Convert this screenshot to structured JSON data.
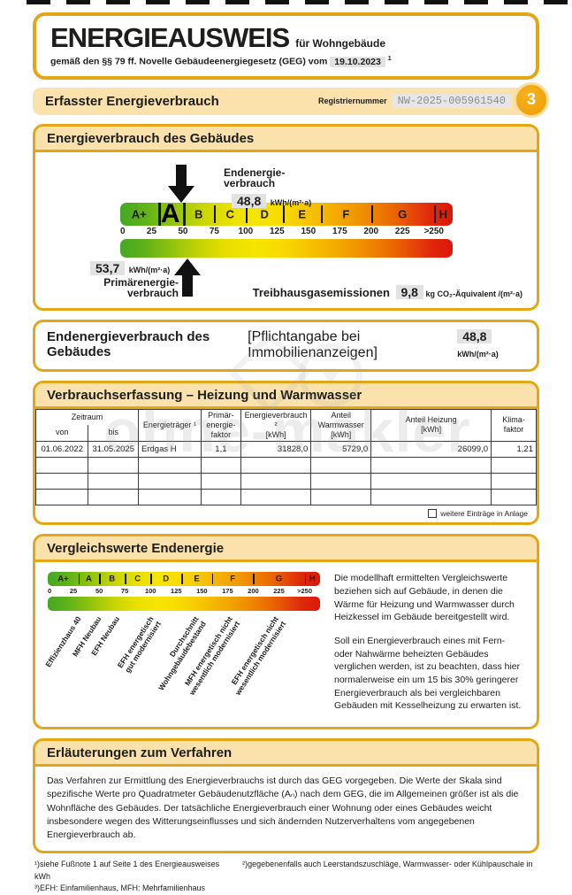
{
  "header": {
    "title": "ENERGIEAUSWEIS",
    "title_suffix": "für Wohngebäude",
    "law_prefix": "gemäß den §§ 79 ff. Novelle Gebäudeenergiegesetz (GEG) vom",
    "law_date": "19.10.2023",
    "law_footnote": "1"
  },
  "registration": {
    "section_title": "Erfasster Energieverbrauch",
    "label": "Registriernummer",
    "number": "NW-2025-005961540",
    "page_badge": "3"
  },
  "consumption_section": {
    "title": "Energieverbrauch des Gebäudes",
    "end_energy_label": "Endenergie-\nverbrauch",
    "end_energy_value": "48,8",
    "end_energy_unit": "kWh/(m²·a)",
    "primary_value": "53,7",
    "primary_unit": "kWh/(m²·a)",
    "primary_label": "Primärenergie-\nverbrauch",
    "ghg_label": "Treibhausgasemissionen",
    "ghg_value": "9,8",
    "ghg_unit": "kg CO₂-Äquivalent /(m²·a)"
  },
  "scale": {
    "max": 265,
    "end_energy": 48.8,
    "primary_energy": 53.7,
    "classes": [
      {
        "letter": "A+",
        "from": 0,
        "to": 30
      },
      {
        "letter": "A",
        "from": 30,
        "to": 50,
        "current": true
      },
      {
        "letter": "B",
        "from": 50,
        "to": 75
      },
      {
        "letter": "C",
        "from": 75,
        "to": 100
      },
      {
        "letter": "D",
        "from": 100,
        "to": 130
      },
      {
        "letter": "E",
        "from": 130,
        "to": 160
      },
      {
        "letter": "F",
        "from": 160,
        "to": 200
      },
      {
        "letter": "G",
        "from": 200,
        "to": 250
      },
      {
        "letter": "H",
        "from": 250,
        "to": 265
      }
    ],
    "ticks": [
      {
        "label": "0",
        "value": 0
      },
      {
        "label": "25",
        "value": 25
      },
      {
        "label": "50",
        "value": 50
      },
      {
        "label": "75",
        "value": 75
      },
      {
        "label": "100",
        "value": 100
      },
      {
        "label": "125",
        "value": 125
      },
      {
        "label": "150",
        "value": 150
      },
      {
        "label": "175",
        "value": 175
      },
      {
        "label": "200",
        "value": 200
      },
      {
        "label": "225",
        "value": 225
      },
      {
        "label": ">250",
        "value": 250
      }
    ]
  },
  "mandatory_bar": {
    "title": "Endenergieverbrauch des Gebäudes",
    "bracket": "[Pflichtangabe bei Immobilienanzeigen]",
    "value": "48,8",
    "unit": "kWh/(m²·a)"
  },
  "table": {
    "title": "Verbrauchserfassung – Heizung und Warmwasser",
    "header": {
      "zeitraum": "Zeitraum",
      "von": "von",
      "bis": "bis",
      "energietraeger": "Energieträger ¹",
      "primaerfaktor": "Primär-\nenergie-\nfaktor",
      "verbrauch": "Energieverbrauch ²\n[kWh]",
      "warmwasser": "Anteil\nWarmwasser\n[kWh]",
      "heizung": "Anteil Heizung\n[kWh]",
      "klimafaktor": "Klima-\nfaktor"
    },
    "rows": [
      [
        "01.06.2022",
        "31.05.2025",
        "Erdgas H",
        "1,1",
        "31828,0",
        "5729,0",
        "26099,0",
        "1,21"
      ],
      [
        "",
        "",
        "",
        "",
        "",
        "",
        "",
        ""
      ],
      [
        "",
        "",
        "",
        "",
        "",
        "",
        "",
        ""
      ],
      [
        "",
        "",
        "",
        "",
        "",
        "",
        "",
        ""
      ]
    ],
    "checkbox_label": "weitere Einträge in Anlage",
    "checkbox_checked": false
  },
  "comparison": {
    "title": "Vergleichswerte Endenergie",
    "labels": [
      {
        "text": "Effizienzhaus 40",
        "value": 28
      },
      {
        "text": "MFH Neubau",
        "value": 47
      },
      {
        "text": "EFH Neubau",
        "value": 65
      },
      {
        "text": "EFH energetisch\ngut modernisiert",
        "value": 98
      },
      {
        "text": "Durchschnitt\nWohngebäudebestand",
        "value": 142
      },
      {
        "text": "MFH energetisch nicht\nwesentlich modernisiert",
        "value": 175
      },
      {
        "text": "EFH energetisch nicht\nwesentlich modernisiert",
        "value": 220
      }
    ],
    "paragraphs": [
      "Die modellhaft ermittelten Vergleichswerte beziehen sich auf Gebäude, in denen die Wärme für Heizung und Warmwasser durch Heizkessel im Gebäude bereitgestellt wird.",
      "Soll ein Energieverbrauch eines mit Fern- oder Nahwärme beheizten Gebäudes verglichen werden, ist zu beachten, dass hier normalerweise ein um 15 bis 30% geringerer Energieverbrauch als bei vergleichbaren Gebäuden mit Kesselheizung zu erwarten ist."
    ]
  },
  "explanation": {
    "title": "Erläuterungen zum Verfahren",
    "text": "Das Verfahren zur Ermittlung des Energieverbrauchs ist durch das GEG vorgegeben. Die Werte der Skala sind spezifische Werte pro Quadratmeter Gebäudenutzfläche (Aₙ) nach dem GEG, die im Allgemeinen größer ist als die Wohnfläche des Gebäudes. Der tatsächliche Energieverbrauch einer Wohnung oder eines Gebäudes weicht insbesondere wegen des Witterungseinflusses und sich ändernden Nutzerverhaltens vom angegebenen Energieverbrauch ab."
  },
  "footnotes": {
    "line1a": "¹)siehe Fußnote 1 auf Seite 1 des Energieausweises",
    "line1b": "²)gegebenenfalls auch Leerstandszuschläge, Warmwasser- oder Kühlpauschale in kWh",
    "line2": "³)EFH: Einfamilienhaus, MFH: Mehrfamilienhaus"
  },
  "watermark": {
    "text": "ohne-makler",
    "heart": "♥"
  }
}
